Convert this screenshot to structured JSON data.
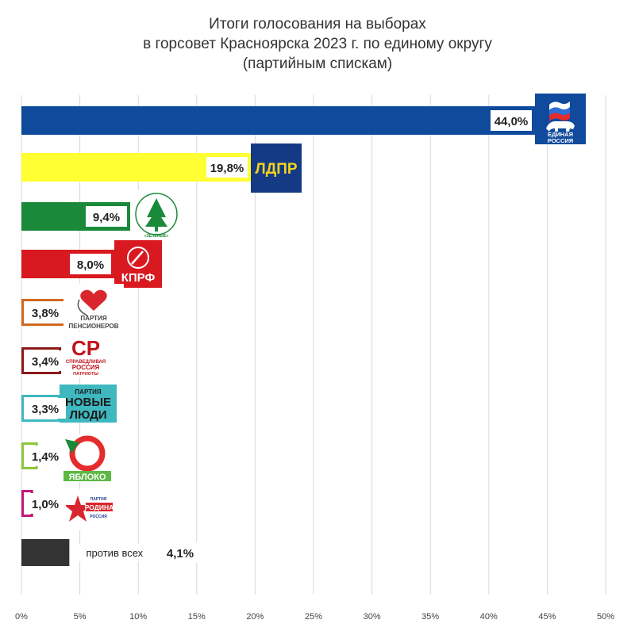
{
  "chart_data": {
    "type": "bar",
    "orientation": "horizontal",
    "title_lines": [
      "Итоги голосования на выборах",
      "в горсовет Красноярска 2023 г. по единому округу",
      "(партийным спискам)"
    ],
    "xlim": [
      0,
      50
    ],
    "x_ticks": [
      "0%",
      "5%",
      "10%",
      "15%",
      "20%",
      "25%",
      "30%",
      "35%",
      "40%",
      "45%",
      "50%"
    ],
    "grid": true,
    "series": [
      {
        "values": [
          44.0,
          19.8,
          9.4,
          8.0,
          3.8,
          3.4,
          3.3,
          1.4,
          1.0,
          4.1
        ],
        "labels": [
          "44,0%",
          "19,8%",
          "9,4%",
          "8,0%",
          "3,8%",
          "3,4%",
          "3,3%",
          "1,4%",
          "1,0%",
          "4,1%"
        ]
      }
    ],
    "bars": [
      {
        "value": 44.0,
        "label": "44,0%",
        "fill": "#0F4A9C",
        "style": "filled",
        "logo": "edinaya-rossiya-logo",
        "logo_text": [
          "ЕДИНАЯ",
          "РОССИЯ"
        ]
      },
      {
        "value": 19.8,
        "label": "19,8%",
        "fill": "#FFFF33",
        "style": "filled",
        "logo": "ldpr-logo",
        "logo_text": [
          "ЛДПР"
        ]
      },
      {
        "value": 9.4,
        "label": "9,4%",
        "fill": "#1A8A3A",
        "style": "filled",
        "logo": "zelenye-logo",
        "logo_text": [
          "РОССИЙСКАЯ ЭКОЛОГИЧЕСКАЯ ПАРТИЯ",
          "«ЗЕЛЁНЫЕ»"
        ]
      },
      {
        "value": 8.0,
        "label": "8,0%",
        "fill": "#D91920",
        "style": "filled",
        "logo": "kprf-logo",
        "logo_text": [
          "КПРФ"
        ]
      },
      {
        "value": 3.8,
        "label": "3,8%",
        "fill": "#D2691E",
        "style": "outline",
        "logo": "partiya-pensionerov-logo",
        "logo_text": [
          "ПАРТИЯ",
          "ПЕНСИОНЕРОВ"
        ]
      },
      {
        "value": 3.4,
        "label": "3,4%",
        "fill": "#8B1A1A",
        "style": "outline",
        "logo": "spravedlivaya-rossiya-logo",
        "logo_text": [
          "СР",
          "СПРАВЕДЛИВАЯ",
          "РОССИЯ",
          "ПАТРИОТЫ"
        ]
      },
      {
        "value": 3.3,
        "label": "3,3%",
        "fill": "#3FB8C0",
        "style": "outline",
        "logo": "novye-lyudi-logo",
        "logo_text": [
          "ПАРТИЯ",
          "НОВЫЕ",
          "ЛЮДИ"
        ]
      },
      {
        "value": 1.4,
        "label": "1,4%",
        "fill": "#8CC63F",
        "style": "outline",
        "logo": "yabloko-logo",
        "logo_text": [
          "ЯБЛОКО"
        ]
      },
      {
        "value": 1.0,
        "label": "1,0%",
        "fill": "#C2187A",
        "style": "outline",
        "logo": "rodina-logo",
        "logo_text": [
          "ПАРТИЯ",
          "РОДИНА",
          "РОССИЯ"
        ]
      },
      {
        "value": 4.1,
        "label": "4,1%",
        "fill": "#333333",
        "style": "filled",
        "logo": "",
        "logo_text": [
          "против всех"
        ]
      }
    ]
  }
}
